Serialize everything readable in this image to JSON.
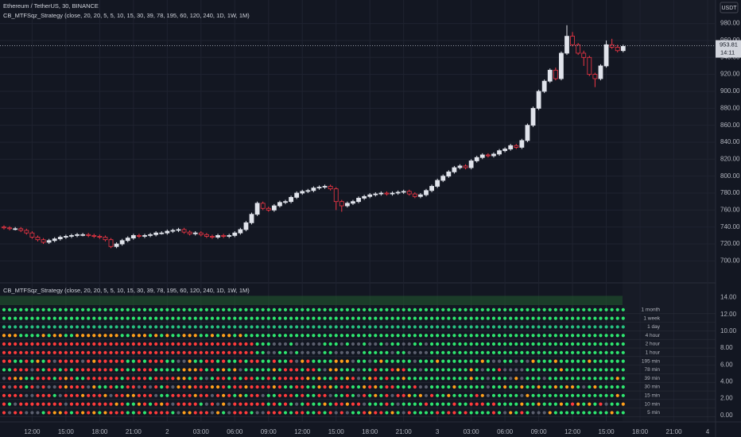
{
  "header": {
    "symbol": "Ethereum / TetherUS, 30, BINANCE",
    "indicator": "CB_MTFSqz_Strategy (close, 20, 20, 5, 5, 10, 15, 30, 39, 78, 195, 60, 120, 240, 1D, 1W, 1M)",
    "currency": "USDT"
  },
  "chart_data": [
    {
      "type": "candlestick",
      "open": [
        740,
        739,
        738,
        738,
        736,
        733,
        728,
        725,
        722,
        724,
        726,
        728,
        729,
        730,
        731,
        731,
        730,
        729,
        728,
        725,
        717,
        720,
        724,
        727,
        730,
        729,
        730,
        731,
        733,
        733,
        735,
        736,
        737,
        734,
        732,
        733,
        731,
        729,
        728,
        730,
        729,
        730,
        733,
        737,
        745,
        755,
        768,
        762,
        760,
        765,
        769,
        770,
        775,
        780,
        782,
        783,
        786,
        787,
        788,
        785,
        770,
        765,
        768,
        770,
        774,
        776,
        778,
        779,
        780,
        779,
        780,
        781,
        782,
        779,
        776,
        778,
        783,
        788,
        795,
        800,
        805,
        810,
        812,
        810,
        818,
        822,
        825,
        824,
        826,
        830,
        832,
        836,
        834,
        842,
        860,
        880,
        900,
        912,
        925,
        915,
        945,
        965,
        955,
        945,
        940,
        920,
        915,
        930,
        955,
        952,
        948
      ],
      "high": [
        742,
        741,
        740,
        740,
        738,
        735,
        730,
        727,
        726,
        728,
        730,
        731,
        732,
        733,
        733,
        733,
        732,
        731,
        730,
        727,
        722,
        726,
        729,
        732,
        732,
        732,
        733,
        735,
        735,
        737,
        738,
        739,
        739,
        736,
        735,
        735,
        733,
        731,
        732,
        732,
        732,
        735,
        739,
        747,
        757,
        770,
        770,
        764,
        767,
        771,
        772,
        777,
        782,
        784,
        785,
        788,
        789,
        790,
        790,
        787,
        772,
        770,
        772,
        776,
        778,
        780,
        781,
        782,
        782,
        782,
        783,
        784,
        784,
        781,
        780,
        785,
        790,
        797,
        802,
        807,
        812,
        814,
        814,
        820,
        824,
        827,
        827,
        828,
        832,
        834,
        838,
        838,
        844,
        862,
        882,
        902,
        914,
        927,
        928,
        947,
        978,
        970,
        957,
        948,
        942,
        922,
        932,
        960,
        962,
        955,
        955
      ],
      "low": [
        737,
        736,
        736,
        734,
        731,
        726,
        723,
        720,
        720,
        722,
        724,
        726,
        727,
        728,
        729,
        728,
        727,
        726,
        723,
        715,
        715,
        718,
        722,
        725,
        727,
        727,
        728,
        729,
        731,
        731,
        733,
        734,
        732,
        730,
        730,
        729,
        727,
        726,
        726,
        727,
        727,
        728,
        731,
        735,
        743,
        753,
        760,
        758,
        758,
        763,
        767,
        768,
        773,
        778,
        780,
        781,
        784,
        785,
        783,
        760,
        758,
        763,
        766,
        768,
        772,
        774,
        776,
        777,
        777,
        777,
        778,
        779,
        777,
        774,
        774,
        776,
        781,
        786,
        793,
        798,
        803,
        808,
        808,
        808,
        816,
        820,
        822,
        822,
        824,
        828,
        830,
        832,
        832,
        840,
        858,
        878,
        898,
        910,
        913,
        913,
        943,
        953,
        943,
        930,
        918,
        905,
        913,
        928,
        950,
        946,
        946
      ],
      "close": [
        739,
        738,
        738,
        736,
        733,
        728,
        725,
        722,
        724,
        726,
        728,
        729,
        730,
        731,
        731,
        730,
        729,
        728,
        725,
        717,
        720,
        724,
        727,
        730,
        729,
        730,
        731,
        733,
        733,
        735,
        736,
        737,
        734,
        732,
        733,
        731,
        729,
        728,
        730,
        729,
        730,
        733,
        737,
        745,
        755,
        768,
        762,
        760,
        765,
        769,
        770,
        775,
        780,
        782,
        783,
        786,
        787,
        788,
        785,
        770,
        765,
        768,
        770,
        774,
        776,
        778,
        779,
        780,
        779,
        780,
        781,
        782,
        779,
        776,
        778,
        783,
        788,
        795,
        800,
        805,
        810,
        812,
        810,
        818,
        822,
        825,
        824,
        826,
        830,
        832,
        836,
        834,
        842,
        860,
        880,
        900,
        912,
        925,
        915,
        945,
        965,
        955,
        945,
        940,
        920,
        915,
        930,
        955,
        952,
        948,
        953
      ],
      "up_color": "#e0e3eb",
      "down_color": "#f23645",
      "ylim": [
        676,
        1004
      ],
      "yticks": [
        {
          "value": 700,
          "label": "700.00"
        },
        {
          "value": 720,
          "label": "720.00"
        },
        {
          "value": 740,
          "label": "740.00"
        },
        {
          "value": 760,
          "label": "760.00"
        },
        {
          "value": 780,
          "label": "780.00"
        },
        {
          "value": 800,
          "label": "800.00"
        },
        {
          "value": 820,
          "label": "820.00"
        },
        {
          "value": 840,
          "label": "840.00"
        },
        {
          "value": 860,
          "label": "860.00"
        },
        {
          "value": 880,
          "label": "880.00"
        },
        {
          "value": 900,
          "label": "900.00"
        },
        {
          "value": 920,
          "label": "920.00"
        },
        {
          "value": 940,
          "label": "940.00"
        },
        {
          "value": 960,
          "label": "960.00"
        },
        {
          "value": 980,
          "label": "980.00"
        }
      ],
      "last_price": 953.81,
      "last_price_label": "953.81",
      "countdown": "14:11",
      "xticks": [
        {
          "value": 5,
          "label": "12:00"
        },
        {
          "value": 11,
          "label": "15:00"
        },
        {
          "value": 17,
          "label": "18:00"
        },
        {
          "value": 23,
          "label": "21:00"
        },
        {
          "value": 29,
          "label": "2"
        },
        {
          "value": 35,
          "label": "03:00"
        },
        {
          "value": 41,
          "label": "06:00"
        },
        {
          "value": 47,
          "label": "09:00"
        },
        {
          "value": 53,
          "label": "12:00"
        },
        {
          "value": 59,
          "label": "15:00"
        },
        {
          "value": 65,
          "label": "18:00"
        },
        {
          "value": 71,
          "label": "21:00"
        },
        {
          "value": 77,
          "label": "3"
        },
        {
          "value": 83,
          "label": "03:00"
        },
        {
          "value": 89,
          "label": "06:00"
        },
        {
          "value": 95,
          "label": "09:00"
        },
        {
          "value": 101,
          "label": "12:00"
        },
        {
          "value": 107,
          "label": "15:00"
        },
        {
          "value": 113,
          "label": "18:00"
        },
        {
          "value": 119,
          "label": "21:00"
        },
        {
          "value": 125,
          "label": "4"
        }
      ]
    },
    {
      "type": "dot-matrix",
      "timeframes": [
        "1 month",
        "1 week",
        "1 day",
        "4 hour",
        "2 hour",
        "1 hour",
        "195 min",
        "78 min",
        "39 min",
        "30 min",
        "15 min",
        "10 min",
        "5 min"
      ],
      "ylim": [
        -0.5,
        14.8
      ],
      "yticks": [
        {
          "value": 0,
          "label": "0.00"
        },
        {
          "value": 2,
          "label": "2.00"
        },
        {
          "value": 4,
          "label": "4.00"
        },
        {
          "value": 6,
          "label": "6.00"
        },
        {
          "value": 8,
          "label": "8.00"
        },
        {
          "value": 10,
          "label": "10.00"
        },
        {
          "value": 12,
          "label": "12.00"
        },
        {
          "value": 14,
          "label": "14.00"
        }
      ]
    }
  ]
}
